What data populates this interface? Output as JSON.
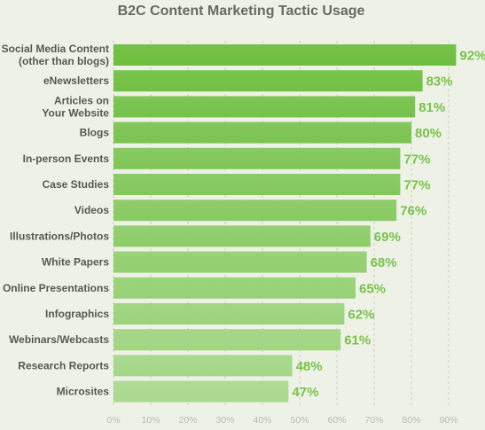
{
  "chart_data": {
    "type": "bar",
    "orientation": "horizontal",
    "title": "B2C Content Marketing Tactic Usage",
    "xlabel": "",
    "ylabel": "",
    "categories": [
      [
        "Social Media Content",
        "(other than blogs)"
      ],
      [
        "eNewsletters"
      ],
      [
        "Articles on",
        "Your Website"
      ],
      [
        "Blogs"
      ],
      [
        "In-person Events"
      ],
      [
        "Case Studies"
      ],
      [
        "Videos"
      ],
      [
        "Illustrations/Photos"
      ],
      [
        "White Papers"
      ],
      [
        "Online Presentations"
      ],
      [
        "Infographics"
      ],
      [
        "Webinars/Webcasts"
      ],
      [
        "Research Reports"
      ],
      [
        "Microsites"
      ]
    ],
    "values": [
      92,
      83,
      81,
      80,
      77,
      77,
      76,
      69,
      68,
      65,
      62,
      61,
      48,
      47
    ],
    "value_labels": [
      "92%",
      "83%",
      "81%",
      "80%",
      "77%",
      "77%",
      "76%",
      "69%",
      "68%",
      "65%",
      "62%",
      "61%",
      "48%",
      "47%"
    ],
    "xlim": [
      0,
      95
    ],
    "xticks": [
      0,
      10,
      20,
      30,
      40,
      50,
      60,
      70,
      80,
      90
    ],
    "xtick_labels": [
      "0%",
      "10%",
      "20%",
      "30%",
      "40%",
      "50%",
      "60%",
      "70%",
      "80%",
      "90%"
    ],
    "grid": "vertical dashed",
    "colors": {
      "bar_top": "#6cbe3c",
      "bar_bottom": "#a9d98e",
      "value_label": "#78c24a",
      "grid": "#c9cec0"
    }
  }
}
